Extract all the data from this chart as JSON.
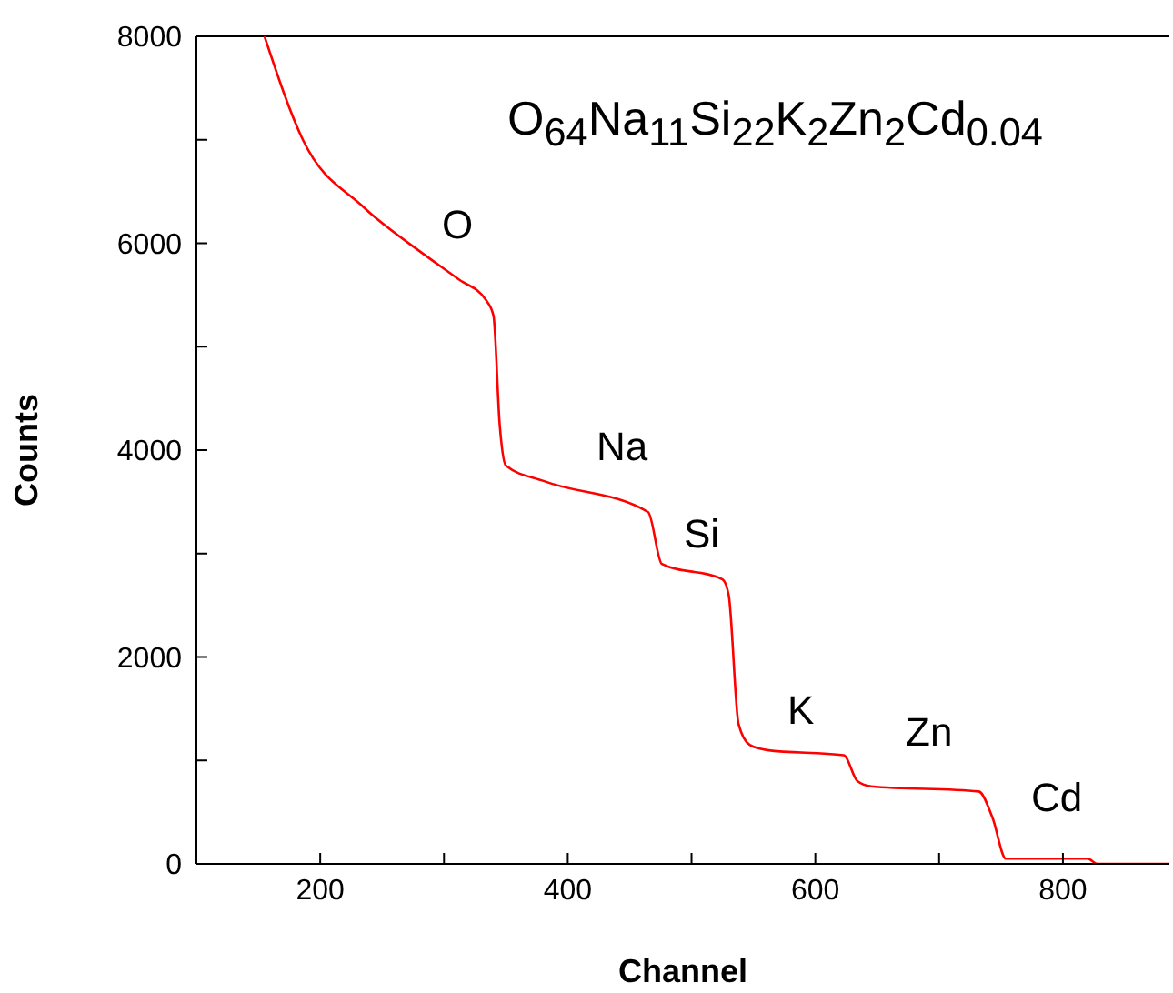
{
  "chart_data": {
    "type": "line",
    "xlabel": "Channel",
    "ylabel": "Counts",
    "x": [
      155,
      186,
      235,
      283,
      312,
      334,
      340,
      345,
      350,
      381,
      465,
      476,
      525,
      530,
      538,
      547,
      561,
      623,
      634,
      645,
      732,
      743,
      754,
      772,
      820,
      828,
      886
    ],
    "series": [
      {
        "color": "#ff0000",
        "values": [
          8000,
          7000,
          6350,
          5900,
          5650,
          5450,
          5300,
          4250,
          3850,
          3700,
          3400,
          2900,
          2750,
          2600,
          1350,
          1150,
          1100,
          1050,
          800,
          750,
          700,
          450,
          50,
          50,
          50,
          0,
          0
        ]
      }
    ],
    "xlim": [
      100,
      886
    ],
    "ylim": [
      0,
      8000
    ],
    "xticks": [
      200,
      {
        "value": 300,
        "label": null
      },
      400,
      {
        "value": 500,
        "label": null
      },
      600,
      {
        "value": 700,
        "label": null
      },
      800
    ],
    "yticks": [
      0,
      {
        "value": 1000,
        "label": null
      },
      2000,
      {
        "value": 3000,
        "label": null
      },
      4000,
      {
        "value": 5000,
        "label": null
      },
      6000,
      {
        "value": 7000,
        "label": null
      },
      8000
    ],
    "grid": false,
    "legend": false,
    "marker": "none",
    "line_style": "solid",
    "annotations": [
      "O$_{64}$Na$_{11}$Si$_{22}$K$_{2}$Zn$_{2}$Cd$_{0.04}$",
      "O",
      "Na",
      "Si",
      "K",
      "Zn",
      "Cd"
    ]
  }
}
